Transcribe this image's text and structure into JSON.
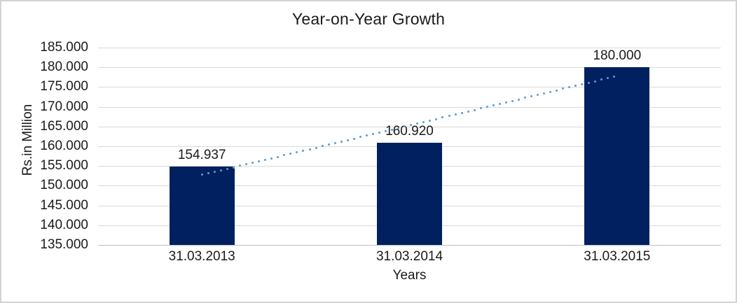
{
  "chart_data": {
    "type": "bar",
    "title": "Year-on-Year Growth",
    "xlabel": "Years",
    "ylabel": "Rs.in Million",
    "categories": [
      "31.03.2013",
      "31.03.2014",
      "31.03.2015"
    ],
    "values": [
      154937,
      160920,
      180000
    ],
    "value_labels": [
      "154.937",
      "160.920",
      "180.000"
    ],
    "y_ticks": [
      {
        "label": "185.000",
        "value": 185000
      },
      {
        "label": "180.000",
        "value": 180000
      },
      {
        "label": "175.000",
        "value": 175000
      },
      {
        "label": "170.000",
        "value": 170000
      },
      {
        "label": "165.000",
        "value": 165000
      },
      {
        "label": "160.000",
        "value": 160000
      },
      {
        "label": "155.000",
        "value": 155000
      },
      {
        "label": "150.000",
        "value": 150000
      },
      {
        "label": "145.000",
        "value": 145000
      },
      {
        "label": "140.000",
        "value": 140000
      },
      {
        "label": "135.000",
        "value": 135000
      }
    ],
    "ylim": [
      135000,
      185000
    ],
    "grid": true,
    "legend_position": "none",
    "trendline": {
      "type": "linear",
      "style": "dotted"
    },
    "colors": {
      "bar": "#002060",
      "trendline": "#5B9BD5",
      "gridline": "#d9d9d9",
      "axis_line": "#bfbfbf",
      "text": "#1a1a1a",
      "frame_border": "#d3d3d3",
      "background": "#ffffff"
    }
  }
}
